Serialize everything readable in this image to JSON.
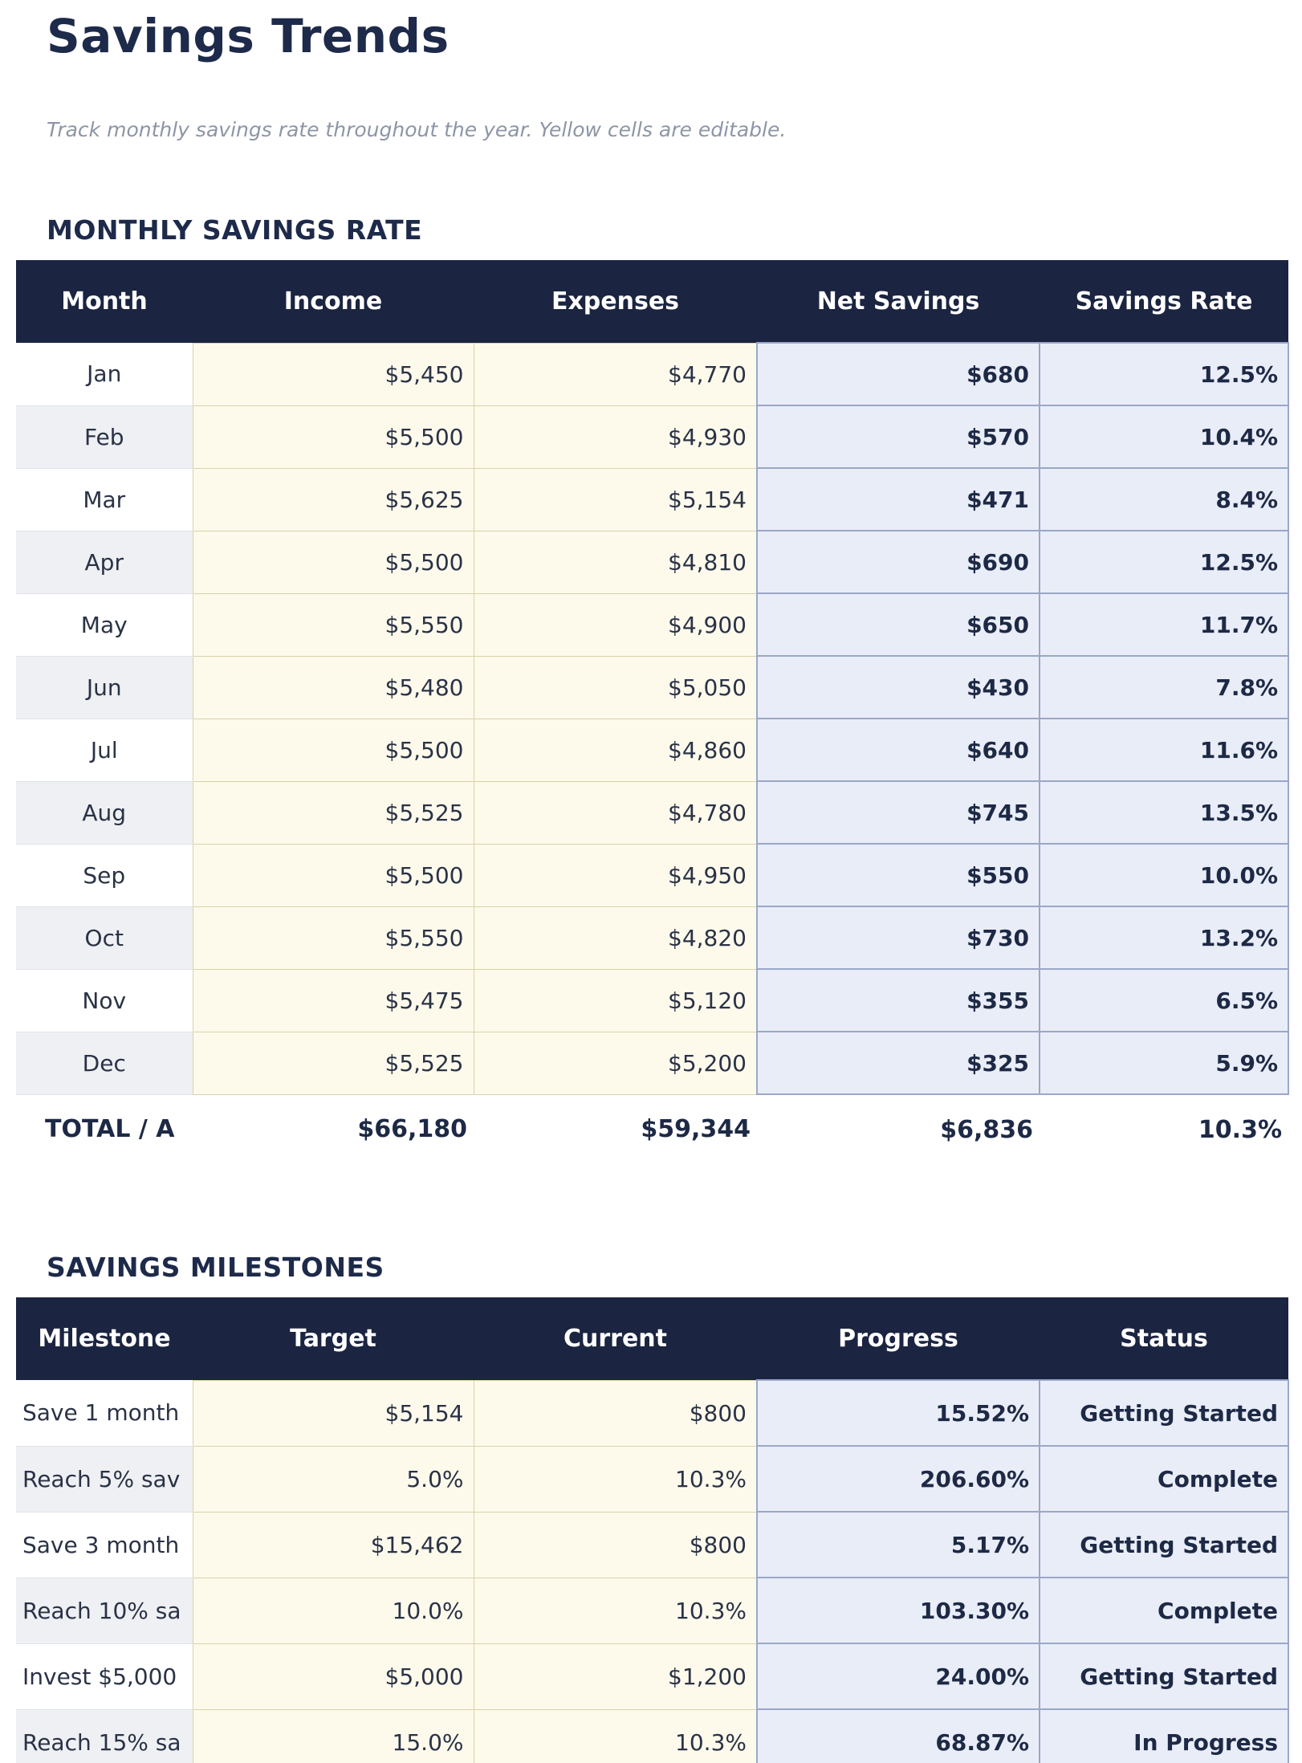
{
  "page": {
    "title": "Savings Trends",
    "subtitle": "Track monthly savings rate throughout the year. Yellow cells are editable."
  },
  "colors": {
    "header_bg": "#1b2440",
    "heading_text": "#1d2a4a",
    "editable_cell_bg": "#fdfaec",
    "editable_cell_border": "#d9d2a7",
    "computed_cell_bg": "#e9edf7",
    "computed_cell_border": "#9aa7c7",
    "zebra_row_bg": "#eef0f4",
    "subtitle_text": "#8d95a6",
    "value_text": "#2a3245",
    "bold_value_text": "#1d2945"
  },
  "monthly_table": {
    "heading": "MONTHLY SAVINGS RATE",
    "columns": [
      "Month",
      "Income",
      "Expenses",
      "Net Savings",
      "Savings Rate"
    ],
    "rows": [
      {
        "month": "Jan",
        "income": "$5,450",
        "expenses": "$4,770",
        "net": "$680",
        "rate": "12.5%"
      },
      {
        "month": "Feb",
        "income": "$5,500",
        "expenses": "$4,930",
        "net": "$570",
        "rate": "10.4%"
      },
      {
        "month": "Mar",
        "income": "$5,625",
        "expenses": "$5,154",
        "net": "$471",
        "rate": "8.4%"
      },
      {
        "month": "Apr",
        "income": "$5,500",
        "expenses": "$4,810",
        "net": "$690",
        "rate": "12.5%"
      },
      {
        "month": "May",
        "income": "$5,550",
        "expenses": "$4,900",
        "net": "$650",
        "rate": "11.7%"
      },
      {
        "month": "Jun",
        "income": "$5,480",
        "expenses": "$5,050",
        "net": "$430",
        "rate": "7.8%"
      },
      {
        "month": "Jul",
        "income": "$5,500",
        "expenses": "$4,860",
        "net": "$640",
        "rate": "11.6%"
      },
      {
        "month": "Aug",
        "income": "$5,525",
        "expenses": "$4,780",
        "net": "$745",
        "rate": "13.5%"
      },
      {
        "month": "Sep",
        "income": "$5,500",
        "expenses": "$4,950",
        "net": "$550",
        "rate": "10.0%"
      },
      {
        "month": "Oct",
        "income": "$5,550",
        "expenses": "$4,820",
        "net": "$730",
        "rate": "13.2%"
      },
      {
        "month": "Nov",
        "income": "$5,475",
        "expenses": "$5,120",
        "net": "$355",
        "rate": "6.5%"
      },
      {
        "month": "Dec",
        "income": "$5,525",
        "expenses": "$5,200",
        "net": "$325",
        "rate": "5.9%"
      }
    ],
    "total": {
      "label": "TOTAL / A",
      "income": "$66,180",
      "expenses": "$59,344",
      "net": "$6,836",
      "rate": "10.3%"
    }
  },
  "milestones_table": {
    "heading": "SAVINGS MILESTONES",
    "columns": [
      "Milestone",
      "Target",
      "Current",
      "Progress",
      "Status"
    ],
    "rows": [
      {
        "milestone": "Save 1 month",
        "target": "$5,154",
        "current": "$800",
        "progress": "15.52%",
        "status": "Getting Started"
      },
      {
        "milestone": "Reach 5% sav",
        "target": "5.0%",
        "current": "10.3%",
        "progress": "206.60%",
        "status": "Complete"
      },
      {
        "milestone": "Save 3 month",
        "target": "$15,462",
        "current": "$800",
        "progress": "5.17%",
        "status": "Getting Started"
      },
      {
        "milestone": "Reach 10% sa",
        "target": "10.0%",
        "current": "10.3%",
        "progress": "103.30%",
        "status": "Complete"
      },
      {
        "milestone": "Invest $5,000",
        "target": "$5,000",
        "current": "$1,200",
        "progress": "24.00%",
        "status": "Getting Started"
      },
      {
        "milestone": "Reach 15% sa",
        "target": "15.0%",
        "current": "10.3%",
        "progress": "68.87%",
        "status": "In Progress"
      }
    ]
  }
}
